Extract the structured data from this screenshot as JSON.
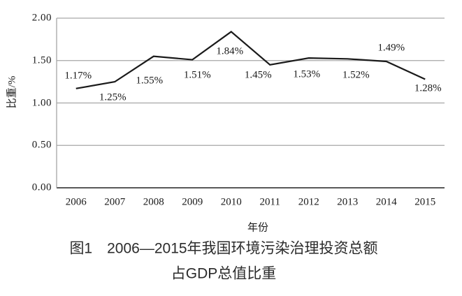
{
  "figure": {
    "caption_line1": "图1　2006—2015年我国环境污染治理投资总额",
    "caption_line2": "占GDP总值比重"
  },
  "chart_data": {
    "type": "line",
    "title": "图1 2006—2015年我国环境污染治理投资总额占GDP总值比重",
    "categories": [
      "2006",
      "2007",
      "2008",
      "2009",
      "2010",
      "2011",
      "2012",
      "2013",
      "2014",
      "2015"
    ],
    "values": [
      1.17,
      1.25,
      1.55,
      1.51,
      1.84,
      1.45,
      1.53,
      1.52,
      1.49,
      1.28
    ],
    "point_labels": [
      "1.17%",
      "1.25%",
      "1.55%",
      "1.51%",
      "1.84%",
      "1.45%",
      "1.53%",
      "1.52%",
      "1.49%",
      "1.28%"
    ],
    "xlabel": "年份",
    "ylabel": "比重/%",
    "ylim": [
      0,
      2
    ],
    "y_ticks": [
      "0.00",
      "0.50",
      "1.00",
      "1.50",
      "2.00"
    ],
    "grid": "horizontal",
    "legend": "none",
    "line_color": "#1a1a1a",
    "grid_color": "#a6a6a6",
    "axis_color": "#595959"
  }
}
